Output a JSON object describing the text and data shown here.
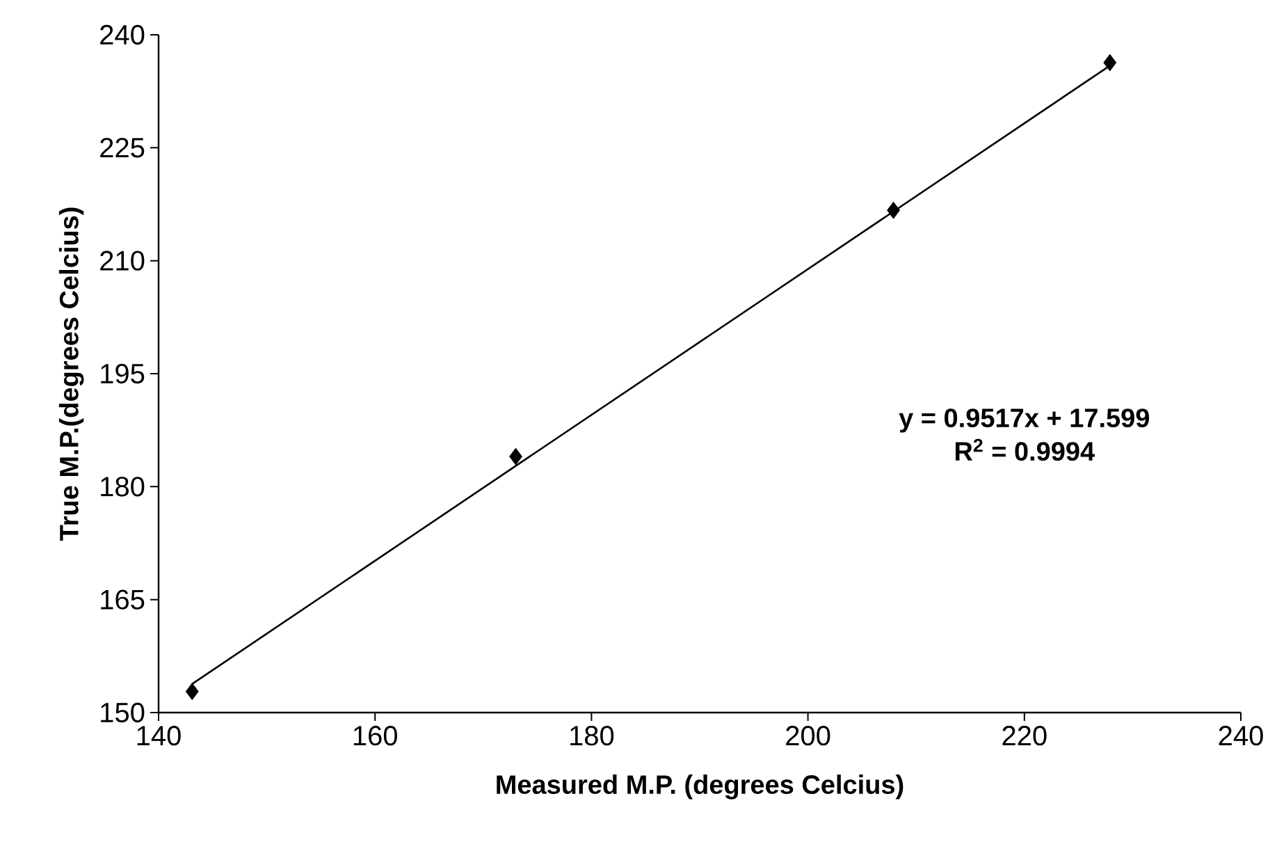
{
  "chart_data": {
    "type": "scatter",
    "xlabel": "Measured M.P. (degrees Celcius)",
    "ylabel": "True M.P.(degrees Celcius)",
    "xlim": [
      140,
      240
    ],
    "xticks": [
      140,
      160,
      180,
      200,
      220,
      240
    ],
    "ylim": [
      150,
      240
    ],
    "yticks": [
      150,
      165,
      180,
      195,
      210,
      225,
      240
    ],
    "marker": "diamond",
    "series": [
      {
        "color": "#000000",
        "x": [
          143.1,
          173.0,
          207.9,
          227.9
        ],
        "values": [
          152.8,
          184.0,
          216.7,
          236.3
        ]
      },
      {
        "type": "line",
        "color": "#000000",
        "line_style": "solid",
        "marker": "none",
        "x": [
          143.1,
          227.9
        ],
        "values": [
          153.8,
          235.9
        ]
      }
    ],
    "annotations": [
      "y = 0.9517x + 17.599",
      "R$^{2}$ = 0.9994"
    ]
  }
}
